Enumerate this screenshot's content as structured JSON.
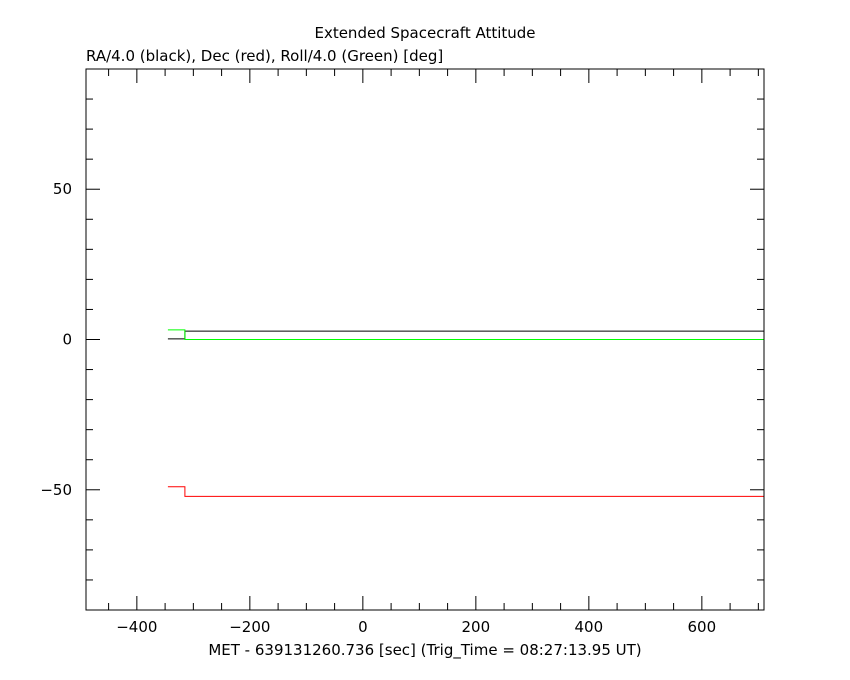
{
  "chart_data": {
    "type": "line",
    "title": "Extended Spacecraft Attitude",
    "subtitle": "RA/4.0 (black), Dec (red), Roll/4.0 (Green) [deg]",
    "xlabel": "MET - 639131260.736 [sec] (Trig_Time = 08:27:13.95 UT)",
    "ylabel": "",
    "xlim": [
      -490,
      710
    ],
    "ylim": [
      -90,
      90
    ],
    "x_ticks": [
      -400,
      -200,
      0,
      200,
      400,
      600
    ],
    "x_tick_labels": [
      "−400",
      "−200",
      "0",
      "200",
      "400",
      "600"
    ],
    "y_ticks": [
      -50,
      0,
      50
    ],
    "y_tick_labels": [
      "−50",
      "0",
      "50"
    ],
    "x_minor_step": 50,
    "y_minor_step": 10,
    "grid": false,
    "series": [
      {
        "color": "#000000",
        "x": [
          -345,
          -315,
          -315,
          710
        ],
        "y": [
          0.2,
          0.2,
          2.8,
          2.8
        ]
      },
      {
        "color": "#ff0000",
        "x": [
          -345,
          -315,
          -315,
          710
        ],
        "y": [
          -49.0,
          -49.0,
          -52.2,
          -52.2
        ]
      },
      {
        "color": "#00ff00",
        "x": [
          -345,
          -315,
          -315,
          710
        ],
        "y": [
          3.2,
          3.2,
          0.0,
          0.0
        ]
      }
    ]
  }
}
